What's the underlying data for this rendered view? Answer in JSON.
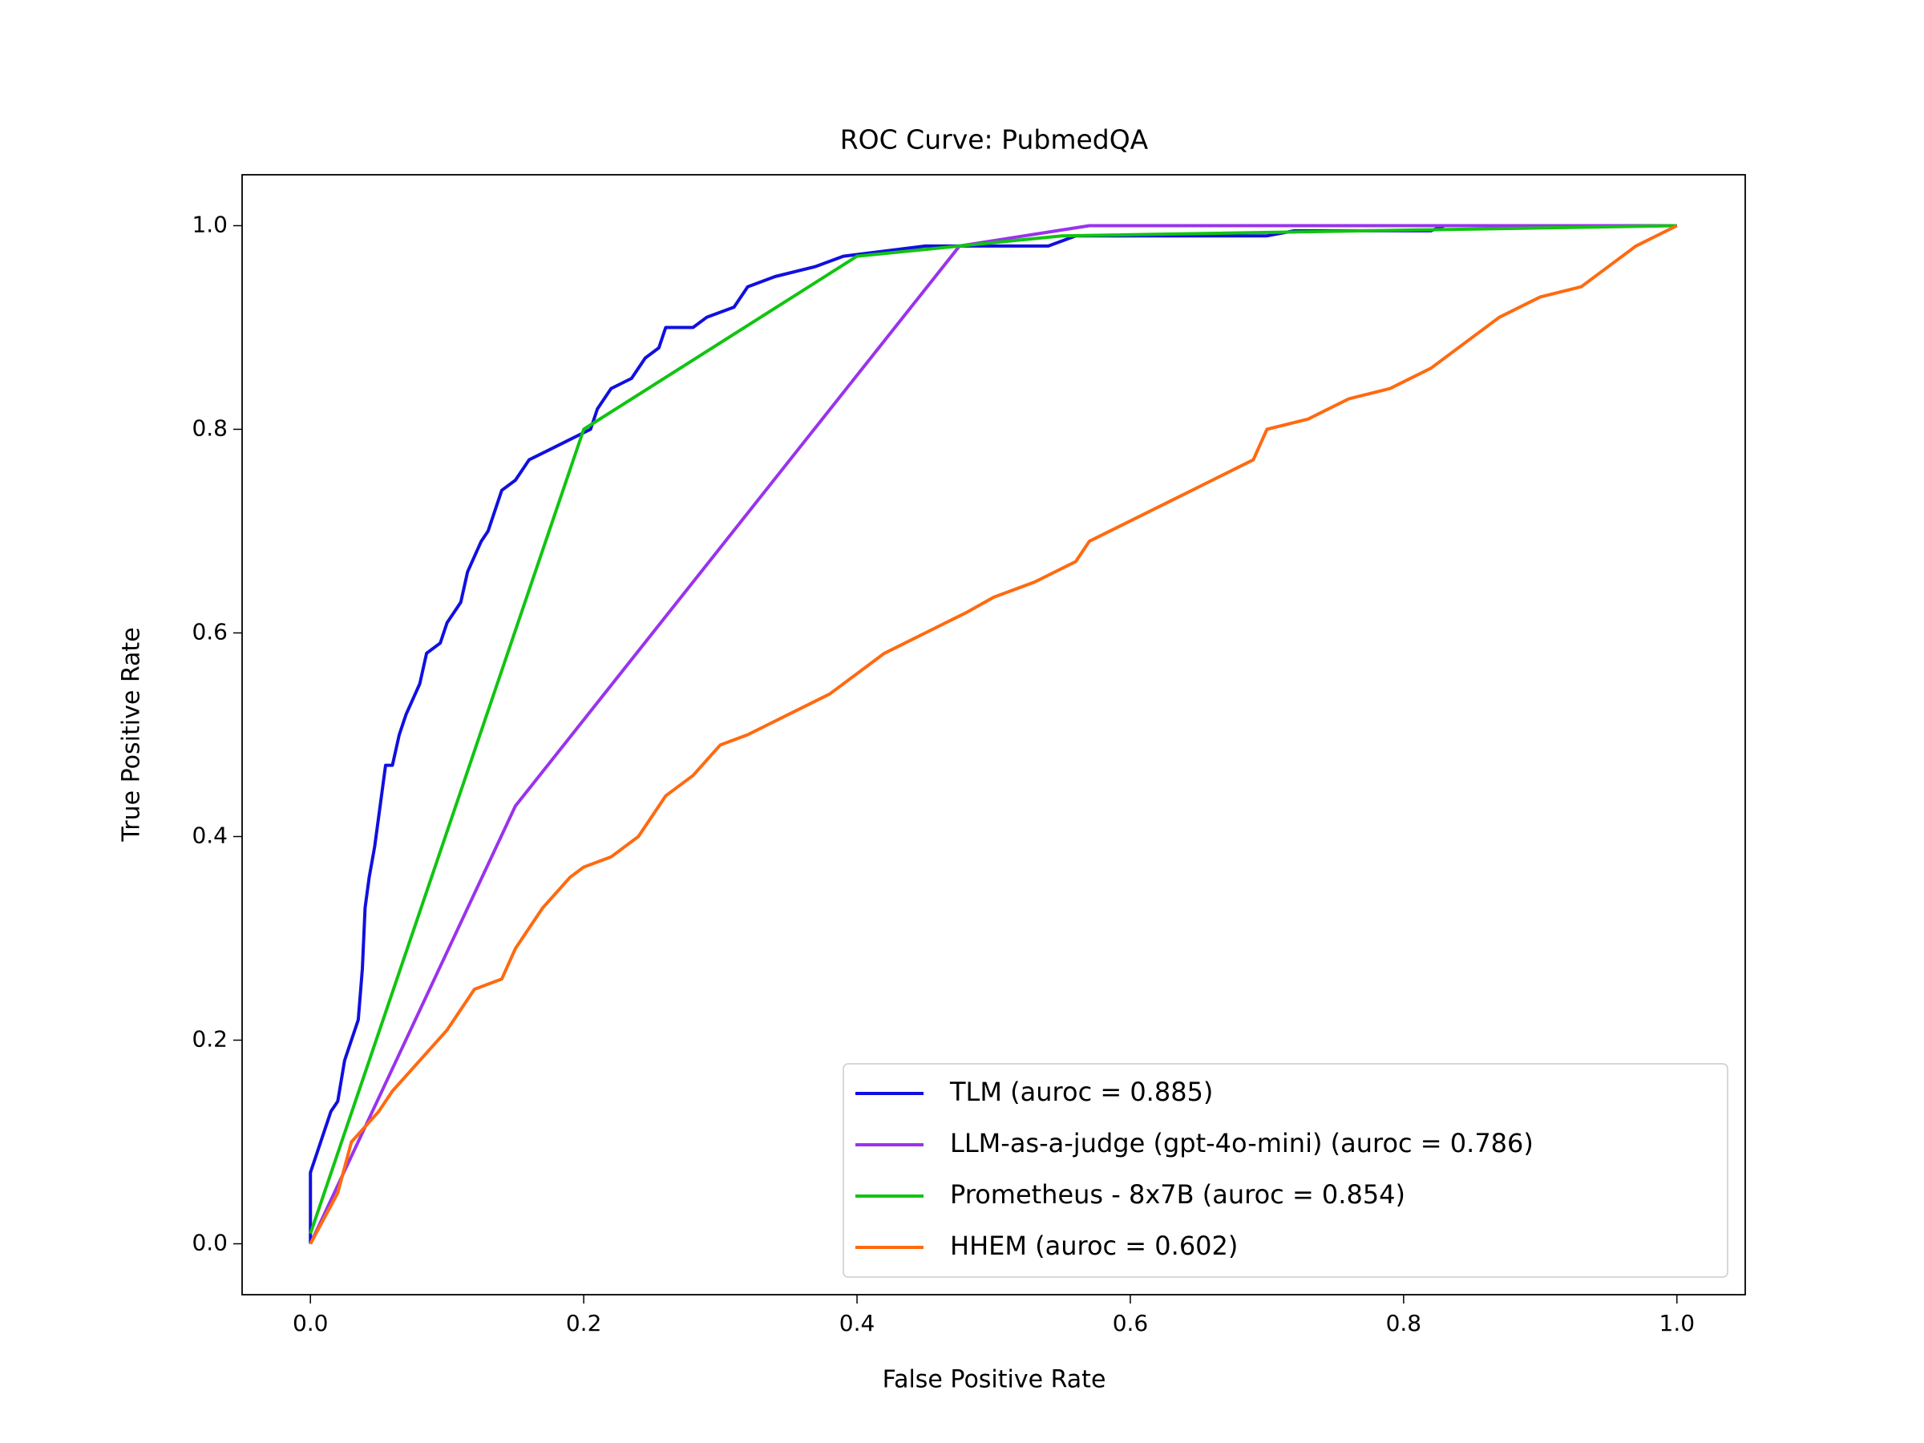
{
  "chart_data": {
    "type": "line",
    "title": "ROC Curve: PubmedQA",
    "x_label": "False Positive Rate",
    "y_label": "True Positive Rate",
    "xlim": [
      -0.05,
      1.05
    ],
    "ylim": [
      -0.05,
      1.05
    ],
    "xticks": [
      {
        "value": 0,
        "label": "0.0"
      },
      0.2,
      0.4,
      0.6,
      0.8,
      {
        "value": 1,
        "label": "1.0"
      }
    ],
    "yticks": [
      {
        "value": 0,
        "label": "0.0"
      },
      0.2,
      0.4,
      0.6,
      0.8,
      {
        "value": 1,
        "label": "1.0"
      }
    ],
    "legend": "lower right",
    "series": [
      {
        "name": "TLM (auroc = 0.885)",
        "color": "#1010e0",
        "x": [
          0,
          0,
          0.005,
          0.01,
          0.015,
          0.02,
          0.025,
          0.03,
          0.035,
          0.038,
          0.04,
          0.043,
          0.047,
          0.05,
          0.055,
          0.06,
          0.065,
          0.07,
          0.08,
          0.085,
          0.095,
          0.1,
          0.11,
          0.115,
          0.125,
          0.13,
          0.14,
          0.15,
          0.16,
          0.175,
          0.19,
          0.205,
          0.21,
          0.22,
          0.235,
          0.245,
          0.255,
          0.26,
          0.28,
          0.29,
          0.31,
          0.32,
          0.34,
          0.37,
          0.39,
          0.45,
          0.54,
          0.56,
          0.7,
          0.72,
          0.82,
          0.83,
          1.0
        ],
        "values": [
          0,
          0.07,
          0.09,
          0.11,
          0.13,
          0.14,
          0.18,
          0.2,
          0.22,
          0.27,
          0.33,
          0.36,
          0.39,
          0.42,
          0.47,
          0.47,
          0.5,
          0.52,
          0.55,
          0.58,
          0.59,
          0.61,
          0.63,
          0.66,
          0.69,
          0.7,
          0.74,
          0.75,
          0.77,
          0.78,
          0.79,
          0.8,
          0.82,
          0.84,
          0.85,
          0.87,
          0.88,
          0.9,
          0.9,
          0.91,
          0.92,
          0.94,
          0.95,
          0.96,
          0.97,
          0.98,
          0.98,
          0.99,
          0.99,
          0.995,
          0.995,
          1.0,
          1.0
        ]
      },
      {
        "name": "LLM-as-a-judge (gpt-4o-mini) (auroc = 0.786)",
        "color": "#9933ee",
        "x": [
          0,
          0.15,
          0.475,
          0.57,
          1.0
        ],
        "values": [
          0,
          0.43,
          0.98,
          1.0,
          1.0
        ]
      },
      {
        "name": "Prometheus - 8x7B (auroc = 0.854)",
        "color": "#11c411",
        "x": [
          0,
          0.2,
          0.4,
          0.55,
          1.0
        ],
        "values": [
          0.01,
          0.8,
          0.97,
          0.99,
          1.0
        ]
      },
      {
        "name": "HHEM (auroc = 0.602)",
        "color": "#ff6a10",
        "x": [
          0,
          0.02,
          0.03,
          0.05,
          0.06,
          0.08,
          0.1,
          0.12,
          0.14,
          0.15,
          0.17,
          0.19,
          0.2,
          0.22,
          0.24,
          0.26,
          0.28,
          0.3,
          0.32,
          0.35,
          0.38,
          0.4,
          0.42,
          0.45,
          0.48,
          0.5,
          0.53,
          0.56,
          0.57,
          0.6,
          0.63,
          0.66,
          0.69,
          0.7,
          0.73,
          0.76,
          0.79,
          0.82,
          0.85,
          0.87,
          0.9,
          0.93,
          0.95,
          0.97,
          1.0
        ],
        "values": [
          0,
          0.05,
          0.1,
          0.13,
          0.15,
          0.18,
          0.21,
          0.25,
          0.26,
          0.29,
          0.33,
          0.36,
          0.37,
          0.38,
          0.4,
          0.44,
          0.46,
          0.49,
          0.5,
          0.52,
          0.54,
          0.56,
          0.58,
          0.6,
          0.62,
          0.635,
          0.65,
          0.67,
          0.69,
          0.71,
          0.73,
          0.75,
          0.77,
          0.8,
          0.81,
          0.83,
          0.84,
          0.86,
          0.89,
          0.91,
          0.93,
          0.94,
          0.96,
          0.98,
          1.0
        ]
      }
    ]
  }
}
